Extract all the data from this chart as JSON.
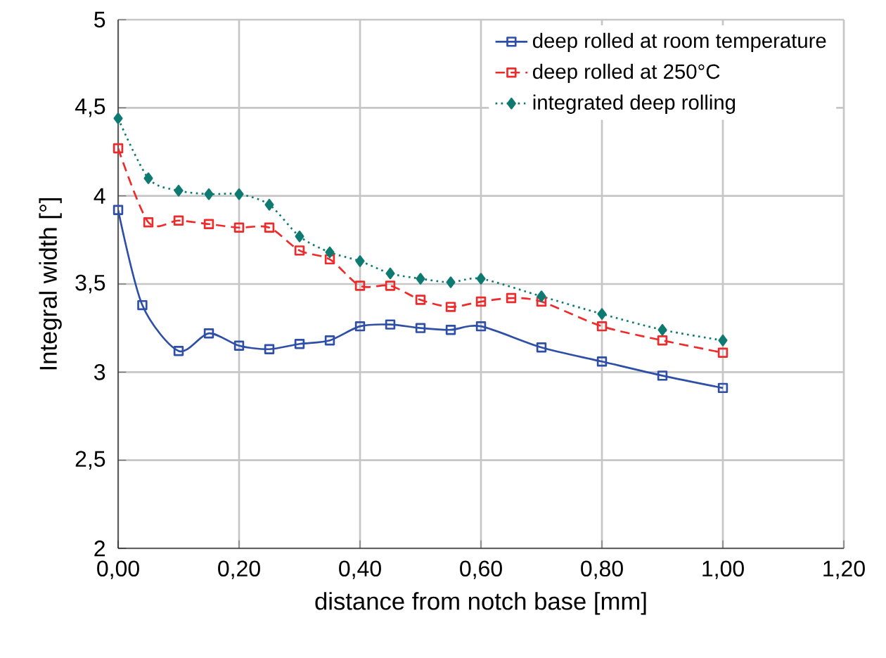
{
  "chart_data": {
    "type": "line",
    "xlabel": "distance from notch base  [mm]",
    "ylabel": "Integral width [°]",
    "xlim": [
      0,
      1.2
    ],
    "ylim": [
      2,
      5
    ],
    "xticks": [
      {
        "value": 0,
        "label": "0,00"
      },
      {
        "value": 0.2,
        "label": "0,20"
      },
      {
        "value": 0.4,
        "label": "0,40"
      },
      {
        "value": 0.6,
        "label": "0,60"
      },
      {
        "value": 0.8,
        "label": "0,80"
      },
      {
        "value": 1.0,
        "label": "1,00"
      },
      {
        "value": 1.2,
        "label": "1,20"
      }
    ],
    "yticks": [
      2,
      {
        "value": 2.5,
        "label": "2,5"
      },
      3,
      {
        "value": 3.5,
        "label": "3,5"
      },
      4,
      {
        "value": 4.5,
        "label": "4,5"
      },
      5
    ],
    "grid": true,
    "legend": "top right",
    "series": [
      {
        "name": "deep rolled at room temperature",
        "color": "#2e4fa8",
        "marker": "square",
        "line_style": "solid",
        "x": [
          0,
          0.04,
          0.1,
          0.15,
          0.2,
          0.25,
          0.3,
          0.35,
          0.4,
          0.45,
          0.5,
          0.55,
          0.6,
          0.7,
          0.8,
          0.9,
          1.0
        ],
        "values": [
          3.92,
          3.38,
          3.12,
          3.22,
          3.15,
          3.13,
          3.16,
          3.18,
          3.26,
          3.27,
          3.25,
          3.24,
          3.26,
          3.14,
          3.06,
          2.98,
          2.91
        ]
      },
      {
        "name": "deep rolled at 250°C",
        "color": "#ee2a2a",
        "marker": "square",
        "line_style": "dashed",
        "x": [
          0,
          0.05,
          0.1,
          0.15,
          0.2,
          0.25,
          0.3,
          0.35,
          0.4,
          0.45,
          0.5,
          0.55,
          0.6,
          0.65,
          0.7,
          0.8,
          0.9,
          1.0
        ],
        "values": [
          4.27,
          3.85,
          3.86,
          3.84,
          3.82,
          3.82,
          3.69,
          3.64,
          3.49,
          3.49,
          3.41,
          3.37,
          3.4,
          3.42,
          3.4,
          3.26,
          3.18,
          3.11
        ]
      },
      {
        "name": "integrated deep rolling",
        "color": "#0e7a72",
        "marker": "diamond",
        "line_style": "dotted",
        "x": [
          0,
          0.05,
          0.1,
          0.15,
          0.2,
          0.25,
          0.3,
          0.35,
          0.4,
          0.45,
          0.5,
          0.55,
          0.6,
          0.7,
          0.8,
          0.9,
          1.0
        ],
        "values": [
          4.44,
          4.1,
          4.03,
          4.01,
          4.01,
          3.95,
          3.77,
          3.68,
          3.63,
          3.56,
          3.53,
          3.51,
          3.53,
          3.43,
          3.33,
          3.24,
          3.18
        ]
      }
    ]
  }
}
